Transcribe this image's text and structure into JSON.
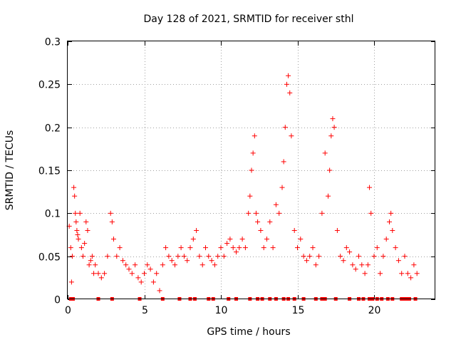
{
  "chart_data": {
    "type": "scatter",
    "title": "Day 128 of 2021, SRMTID for receiver sthl",
    "xlabel": "GPS time / hours",
    "ylabel": "SRMTID / TECUs",
    "xlim": [
      0,
      24
    ],
    "ylim": [
      0,
      0.3
    ],
    "grid": true,
    "x_ticks": [
      0,
      5,
      10,
      15,
      20
    ],
    "x_tick_labels": [
      "0",
      "5",
      "10",
      "15",
      "20"
    ],
    "y_ticks": [
      0,
      0.05,
      0.1,
      0.15,
      0.2,
      0.25,
      0.3
    ],
    "y_tick_labels": [
      "0",
      "0.05",
      "0.1",
      "0.15",
      "0.2",
      "0.25",
      "0.3"
    ],
    "marker": "plus",
    "color": "#ff0000",
    "series": [
      {
        "name": "SRMTID",
        "x": [
          0.1,
          0.2,
          0.25,
          0.3,
          0.4,
          0.45,
          0.5,
          0.55,
          0.6,
          0.65,
          0.7,
          0.8,
          0.9,
          1.0,
          1.1,
          1.2,
          1.3,
          1.4,
          1.5,
          1.6,
          1.7,
          1.8,
          2.0,
          2.2,
          2.4,
          2.6,
          2.8,
          2.9,
          3.0,
          3.2,
          3.4,
          3.6,
          3.8,
          4.0,
          4.2,
          4.4,
          4.6,
          4.8,
          5.0,
          5.2,
          5.4,
          5.6,
          5.8,
          6.0,
          6.2,
          6.4,
          6.6,
          6.8,
          7.0,
          7.2,
          7.4,
          7.6,
          7.8,
          8.0,
          8.2,
          8.4,
          8.6,
          8.8,
          9.0,
          9.2,
          9.4,
          9.6,
          9.8,
          10.0,
          10.2,
          10.4,
          10.6,
          10.8,
          11.0,
          11.2,
          11.4,
          11.6,
          11.8,
          11.9,
          12.0,
          12.1,
          12.2,
          12.3,
          12.4,
          12.6,
          12.8,
          13.0,
          13.2,
          13.4,
          13.6,
          13.8,
          14.0,
          14.1,
          14.2,
          14.3,
          14.4,
          14.5,
          14.6,
          14.8,
          15.0,
          15.2,
          15.4,
          15.6,
          15.8,
          16.0,
          16.2,
          16.4,
          16.6,
          16.8,
          17.0,
          17.1,
          17.2,
          17.3,
          17.4,
          17.6,
          17.8,
          18.0,
          18.2,
          18.4,
          18.6,
          18.8,
          19.0,
          19.2,
          19.4,
          19.6,
          19.7,
          19.8,
          20.0,
          20.2,
          20.4,
          20.6,
          20.8,
          21.0,
          21.1,
          21.2,
          21.4,
          21.6,
          21.8,
          22.0,
          22.2,
          22.4,
          22.6,
          22.8
        ],
        "y": [
          0.085,
          0.06,
          0.02,
          0.05,
          0.13,
          0.12,
          0.1,
          0.09,
          0.08,
          0.075,
          0.07,
          0.1,
          0.06,
          0.05,
          0.065,
          0.09,
          0.08,
          0.04,
          0.045,
          0.05,
          0.03,
          0.04,
          0.03,
          0.025,
          0.03,
          0.05,
          0.1,
          0.09,
          0.07,
          0.05,
          0.06,
          0.045,
          0.04,
          0.035,
          0.03,
          0.04,
          0.025,
          0.02,
          0.03,
          0.04,
          0.035,
          0.02,
          0.03,
          0.01,
          0.04,
          0.06,
          0.05,
          0.045,
          0.04,
          0.05,
          0.06,
          0.05,
          0.045,
          0.06,
          0.07,
          0.08,
          0.05,
          0.04,
          0.06,
          0.05,
          0.045,
          0.04,
          0.05,
          0.06,
          0.05,
          0.065,
          0.07,
          0.06,
          0.055,
          0.06,
          0.07,
          0.06,
          0.1,
          0.12,
          0.15,
          0.17,
          0.19,
          0.1,
          0.09,
          0.08,
          0.06,
          0.07,
          0.09,
          0.06,
          0.11,
          0.1,
          0.13,
          0.16,
          0.2,
          0.25,
          0.26,
          0.24,
          0.19,
          0.08,
          0.06,
          0.07,
          0.05,
          0.045,
          0.05,
          0.06,
          0.04,
          0.05,
          0.1,
          0.17,
          0.12,
          0.15,
          0.19,
          0.21,
          0.2,
          0.08,
          0.05,
          0.045,
          0.06,
          0.055,
          0.04,
          0.035,
          0.05,
          0.04,
          0.03,
          0.04,
          0.13,
          0.1,
          0.05,
          0.06,
          0.03,
          0.05,
          0.07,
          0.09,
          0.1,
          0.08,
          0.06,
          0.045,
          0.03,
          0.05,
          0.03,
          0.025,
          0.04,
          0.03
        ],
        "gap_markers_x": [
          0.2,
          0.35,
          2.0,
          2.9,
          4.7,
          6.2,
          7.3,
          8.0,
          8.3,
          9.2,
          9.5,
          10.5,
          11.0,
          11.9,
          12.4,
          12.7,
          13.2,
          13.6,
          14.1,
          14.4,
          14.8,
          15.4,
          16.2,
          16.6,
          16.8,
          17.5,
          18.4,
          19.0,
          19.3,
          19.7,
          19.8,
          19.9,
          20.2,
          20.5,
          20.9,
          21.2,
          21.8,
          22.0,
          22.1,
          22.3,
          22.7
        ]
      }
    ]
  }
}
